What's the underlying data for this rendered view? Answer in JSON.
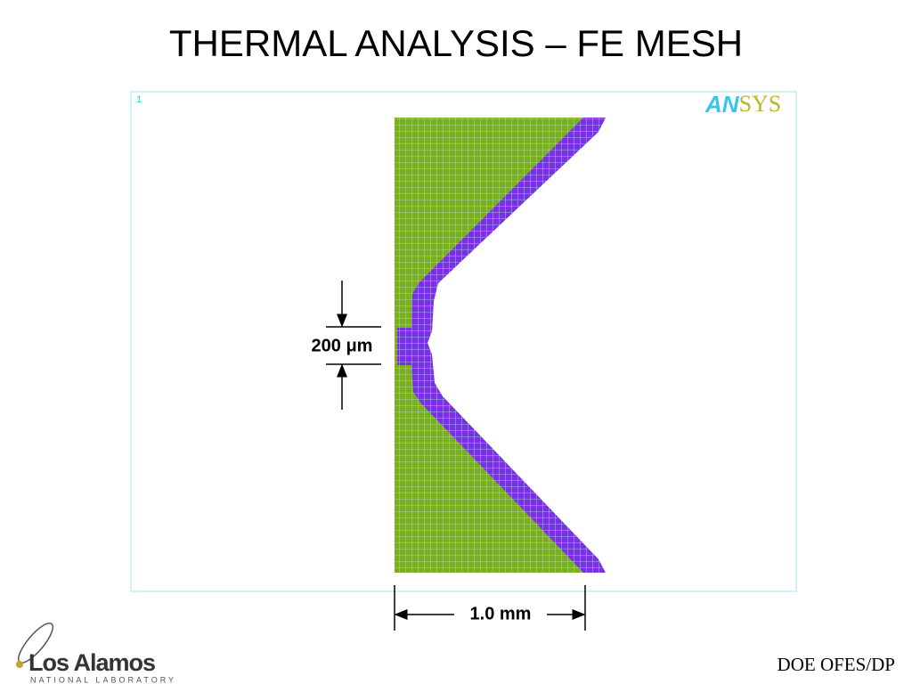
{
  "title": "THERMAL ANALYSIS – FE MESH",
  "plot": {
    "window_number": "1",
    "logo": {
      "left": "AN",
      "right": "SYS"
    }
  },
  "dimensions": {
    "gap": "200 μm",
    "width": "1.0 mm"
  },
  "footer": {
    "lab_name": "Los Alamos",
    "lab_subtitle": "NATIONAL LABORATORY",
    "sponsor": "DOE OFES/DP"
  }
}
